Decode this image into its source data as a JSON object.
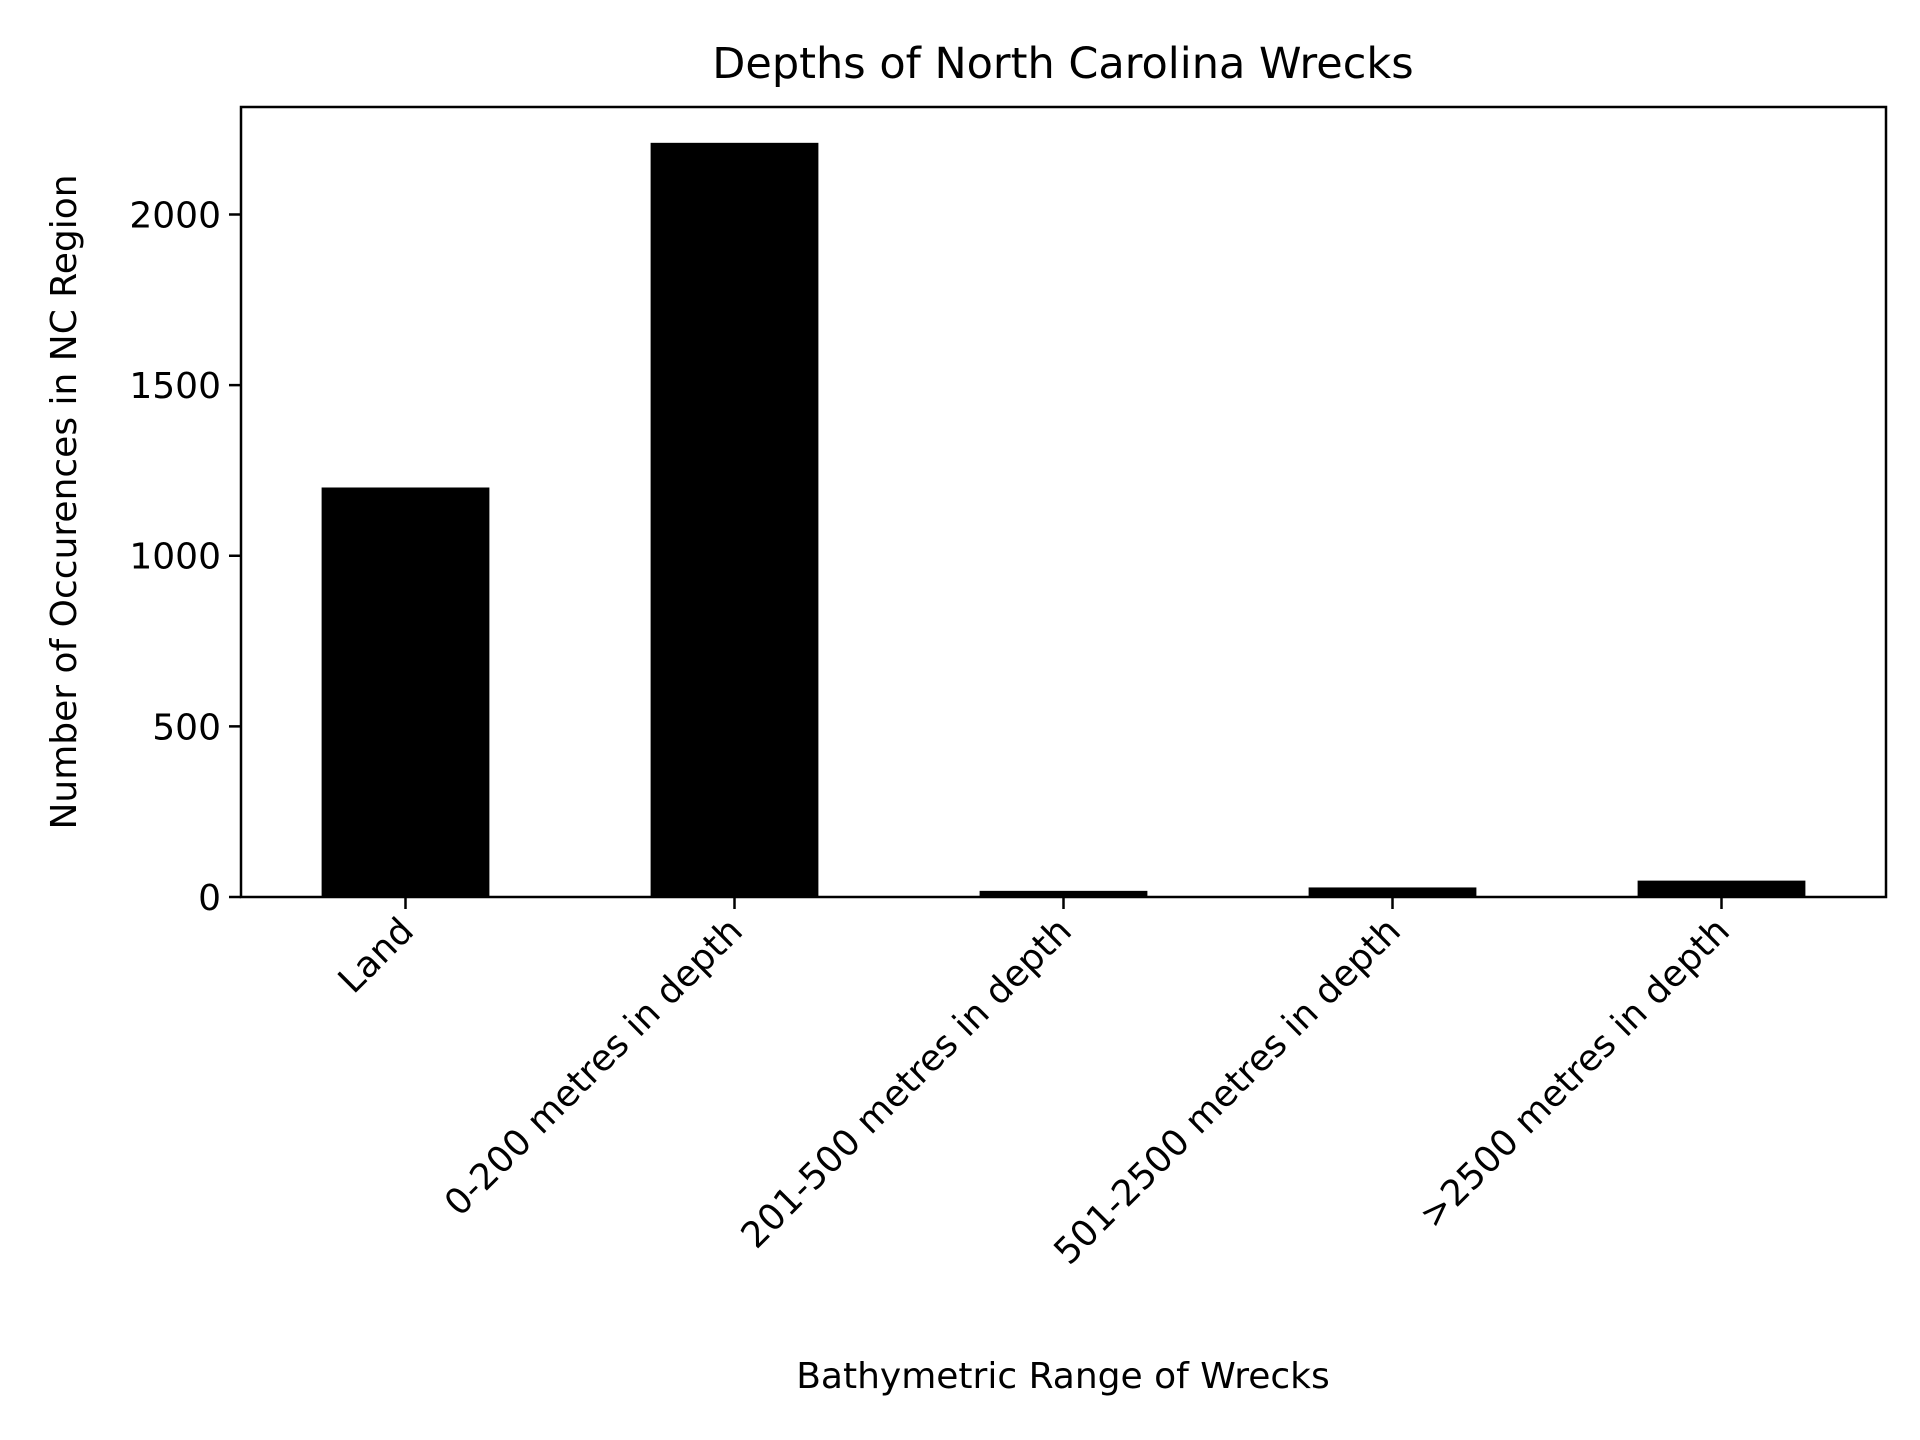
{
  "chart_data": {
    "type": "bar",
    "title": "Depths of North Carolina Wrecks",
    "xlabel": "Bathymetric Range of Wrecks",
    "ylabel": "Number of Occurences in NC Region",
    "categories": [
      "Land",
      "0-200 metres in depth",
      "201-500 metres in depth",
      "501-2500 metres in depth",
      ">2500 metres in depth"
    ],
    "values": [
      1200,
      2210,
      18,
      28,
      48
    ],
    "ylim": [
      0,
      2315
    ],
    "yticks": [
      0,
      500,
      1000,
      1500,
      2000
    ],
    "bar_color": "#000000",
    "grid": false,
    "legend": "none"
  }
}
